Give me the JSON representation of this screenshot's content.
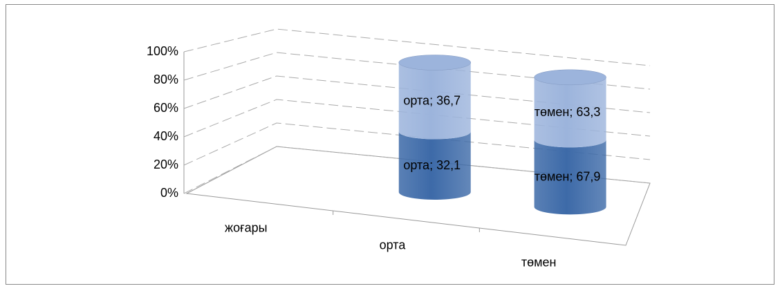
{
  "chart_data": {
    "type": "cylinder",
    "stacking": "percent",
    "categories": [
      "жоғары",
      "орта",
      "төмен"
    ],
    "series": [
      {
        "color": "#3d6aa8",
        "values": [
          null,
          32.1,
          67.9
        ],
        "value_labels": [
          null,
          "орта; 32,1",
          "төмен; 67,9"
        ]
      },
      {
        "color": "#9cb4dc",
        "values": [
          null,
          36.7,
          63.3
        ],
        "value_labels": [
          null,
          "орта; 36,7",
          "төмен; 63,3"
        ]
      }
    ],
    "ylim": [
      0,
      100
    ],
    "yticks": [
      {
        "value": 0,
        "label": "0%"
      },
      {
        "value": 20,
        "label": "20%"
      },
      {
        "value": 40,
        "label": "40%"
      },
      {
        "value": 60,
        "label": "60%"
      },
      {
        "value": 80,
        "label": "80%"
      },
      {
        "value": 100,
        "label": "100%"
      }
    ],
    "grid": true
  }
}
